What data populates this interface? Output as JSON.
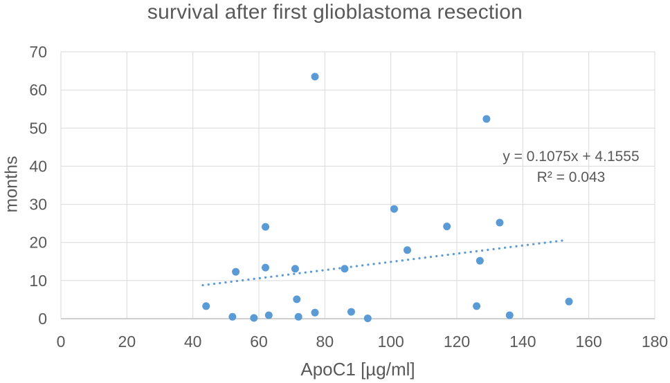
{
  "chart_data": {
    "type": "scatter",
    "title": "survival after first glioblastoma resection",
    "xlabel": "ApoC1 [µg/ml]",
    "ylabel": "months",
    "xlim": [
      0,
      180
    ],
    "ylim": [
      0,
      70
    ],
    "xticks": [
      0,
      20,
      40,
      60,
      80,
      100,
      120,
      140,
      160,
      180
    ],
    "yticks": [
      0,
      10,
      20,
      30,
      40,
      50,
      60,
      70
    ],
    "grid": true,
    "legend": "none",
    "points": [
      {
        "x": 44,
        "y": 3.3
      },
      {
        "x": 52,
        "y": 0.5
      },
      {
        "x": 53,
        "y": 12.3
      },
      {
        "x": 58.5,
        "y": 0.2
      },
      {
        "x": 62,
        "y": 13.4
      },
      {
        "x": 62,
        "y": 24.1
      },
      {
        "x": 63,
        "y": 0.9
      },
      {
        "x": 71,
        "y": 13.1
      },
      {
        "x": 71.5,
        "y": 5.1
      },
      {
        "x": 72,
        "y": 0.5
      },
      {
        "x": 77,
        "y": 1.6
      },
      {
        "x": 77,
        "y": 63.5
      },
      {
        "x": 86,
        "y": 13.1
      },
      {
        "x": 88,
        "y": 1.8
      },
      {
        "x": 93,
        "y": 0.1
      },
      {
        "x": 101,
        "y": 28.8
      },
      {
        "x": 105,
        "y": 18.0
      },
      {
        "x": 117,
        "y": 24.2
      },
      {
        "x": 126,
        "y": 3.3
      },
      {
        "x": 127,
        "y": 15.2
      },
      {
        "x": 129,
        "y": 52.4
      },
      {
        "x": 133,
        "y": 25.2
      },
      {
        "x": 136,
        "y": 0.9
      },
      {
        "x": 154,
        "y": 4.5
      }
    ],
    "trendline": {
      "slope": 0.1075,
      "intercept": 4.1555,
      "x_start": 43,
      "x_end": 153.5,
      "equation_label": "y = 0.1075x + 4.1555",
      "r2_label": "R² = 0.043",
      "style": "dotted"
    },
    "colors": {
      "marker": "#5B9BD5",
      "trendline": "#5B9BD5",
      "gridline": "#D9D9D9",
      "axisline": "#BFBFBF",
      "text": "#595959"
    }
  }
}
